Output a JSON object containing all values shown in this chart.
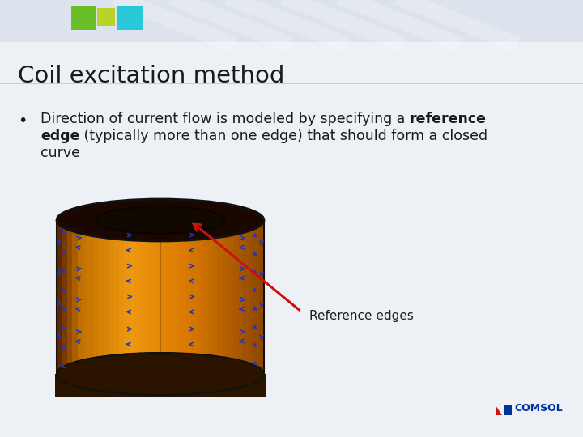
{
  "title": "Coil excitation method",
  "bullet_line1_normal": "Direction of current flow is modeled by specifying a ",
  "bullet_line1_bold": "reference",
  "bullet_line2_bold": "edge",
  "bullet_line2_normal": " (typically more than one edge) that should form a closed",
  "bullet_line3": "curve",
  "reference_label": "Reference edges",
  "bg_color": "#edf0f5",
  "header_color": "#dde3ec",
  "title_color": "#1a1a1a",
  "text_color": "#1a1a1a",
  "cyl_orange": "#E8820A",
  "cyl_dark": "#7a3800",
  "cyl_mid": "#b05a00",
  "cyl_light": "#f0a030",
  "cyl_black": "#111111",
  "blue_arrow": "#1a35c8",
  "red_arrow": "#cc1111",
  "comsol_red": "#cc1111",
  "comsol_blue": "#003399",
  "green1": "#6abe28",
  "green2": "#b8d428",
  "cyan1": "#28c8d8",
  "figsize": [
    7.2,
    5.4
  ],
  "dpi": 100
}
